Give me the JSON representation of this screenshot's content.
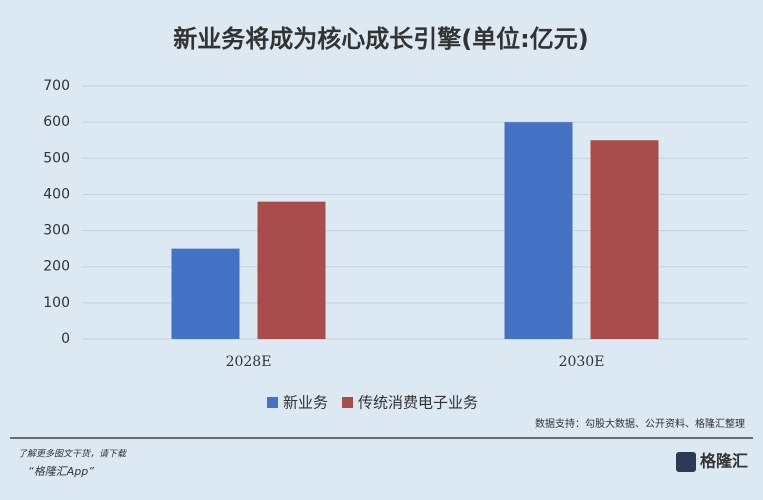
{
  "chart_data": {
    "type": "bar",
    "title": "新业务将成为核心成长引擎(单位:亿元)",
    "categories": [
      "2028E",
      "2030E"
    ],
    "series": [
      {
        "name": "新业务",
        "color": "#4472c4",
        "values": [
          250,
          600
        ]
      },
      {
        "name": "传统消费电子业务",
        "color": "#a84d4b",
        "values": [
          380,
          550
        ]
      }
    ],
    "ylim": [
      0,
      700
    ],
    "yticks": [
      0,
      100,
      200,
      300,
      400,
      500,
      600,
      700
    ],
    "grid": true,
    "legend": "bottom",
    "source": "数据支持：勾股大数据、公开资料、格隆汇整理"
  },
  "footer": {
    "promo": "了解更多图文干货，请下载",
    "app": "“格隆汇App”",
    "logo": "格隆汇"
  }
}
